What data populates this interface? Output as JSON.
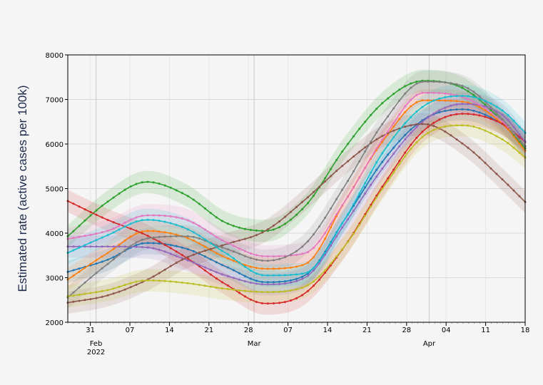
{
  "chart_data": {
    "type": "line",
    "ylabel": "Estimated rate (active cases per 100k)",
    "ylim": [
      2000,
      8000
    ],
    "yticks": [
      2000,
      3000,
      4000,
      5000,
      6000,
      7000,
      8000
    ],
    "x_range": [
      "2022-01-27",
      "2022-04-18"
    ],
    "x_ticks": [
      {
        "date": "2022-01-31",
        "label": "31",
        "sub": ""
      },
      {
        "date": "2022-02-01",
        "label": "",
        "sub": "Feb\n2022"
      },
      {
        "date": "2022-02-07",
        "label": "07",
        "sub": ""
      },
      {
        "date": "2022-02-14",
        "label": "14",
        "sub": ""
      },
      {
        "date": "2022-02-21",
        "label": "21",
        "sub": ""
      },
      {
        "date": "2022-02-28",
        "label": "28",
        "sub": ""
      },
      {
        "date": "2022-03-01",
        "label": "",
        "sub": "Mar"
      },
      {
        "date": "2022-03-07",
        "label": "07",
        "sub": ""
      },
      {
        "date": "2022-03-14",
        "label": "14",
        "sub": ""
      },
      {
        "date": "2022-03-21",
        "label": "21",
        "sub": ""
      },
      {
        "date": "2022-03-28",
        "label": "28",
        "sub": ""
      },
      {
        "date": "2022-04-01",
        "label": "",
        "sub": "Apr"
      },
      {
        "date": "2022-04-04",
        "label": "04",
        "sub": ""
      },
      {
        "date": "2022-04-11",
        "label": "11",
        "sub": ""
      },
      {
        "date": "2022-04-18",
        "label": "18",
        "sub": ""
      }
    ],
    "month_gridlines": [
      "2022-02-01",
      "2022-03-01",
      "2022-04-01"
    ],
    "grid": true,
    "band_halfwidth": 250,
    "series_dates": [
      "2022-01-27",
      "2022-02-03",
      "2022-02-10",
      "2022-02-17",
      "2022-02-24",
      "2022-03-03",
      "2022-03-10",
      "2022-03-17",
      "2022-03-24",
      "2022-03-31",
      "2022-04-07",
      "2022-04-14",
      "2022-04-18"
    ],
    "series": [
      {
        "color": "#1f77b4",
        "values": [
          3130,
          3400,
          3780,
          3650,
          3250,
          2900,
          3050,
          4300,
          5650,
          6550,
          6780,
          6450,
          6050
        ]
      },
      {
        "color": "#ff7f0e",
        "values": [
          2960,
          3550,
          4050,
          3900,
          3450,
          3200,
          3300,
          4700,
          6100,
          6980,
          6950,
          6450,
          5850
        ]
      },
      {
        "color": "#2ca02c",
        "values": [
          3930,
          4700,
          5150,
          4850,
          4230,
          4050,
          4600,
          5900,
          6950,
          7420,
          7250,
          6500,
          5900
        ]
      },
      {
        "color": "#d62728",
        "values": [
          4720,
          4300,
          3950,
          3450,
          2850,
          2420,
          2650,
          3700,
          5100,
          6300,
          6680,
          6450,
          6050
        ]
      },
      {
        "color": "#9467bd",
        "values": [
          3700,
          3700,
          3680,
          3400,
          3050,
          2850,
          3000,
          4200,
          5500,
          6520,
          6900,
          6650,
          6050
        ]
      },
      {
        "color": "#8c564b",
        "values": [
          2440,
          2600,
          2950,
          3450,
          3750,
          4050,
          4750,
          5550,
          6200,
          6450,
          6000,
          5200,
          4700
        ]
      },
      {
        "color": "#e377c2",
        "values": [
          3870,
          4050,
          4400,
          4300,
          3800,
          3480,
          3550,
          4700,
          6150,
          7150,
          7050,
          6500,
          5950
        ]
      },
      {
        "color": "#7f7f7f",
        "values": [
          2560,
          3300,
          3880,
          3930,
          3650,
          3380,
          3750,
          5050,
          6500,
          7400,
          7300,
          6550,
          5950
        ]
      },
      {
        "color": "#bcbd22",
        "values": [
          2580,
          2720,
          2940,
          2880,
          2750,
          2680,
          2800,
          3700,
          5050,
          6180,
          6420,
          6100,
          5700
        ]
      },
      {
        "color": "#17becf",
        "values": [
          3560,
          3950,
          4300,
          4100,
          3550,
          3050,
          3100,
          4300,
          5850,
          6850,
          7080,
          6750,
          6250
        ]
      }
    ]
  }
}
